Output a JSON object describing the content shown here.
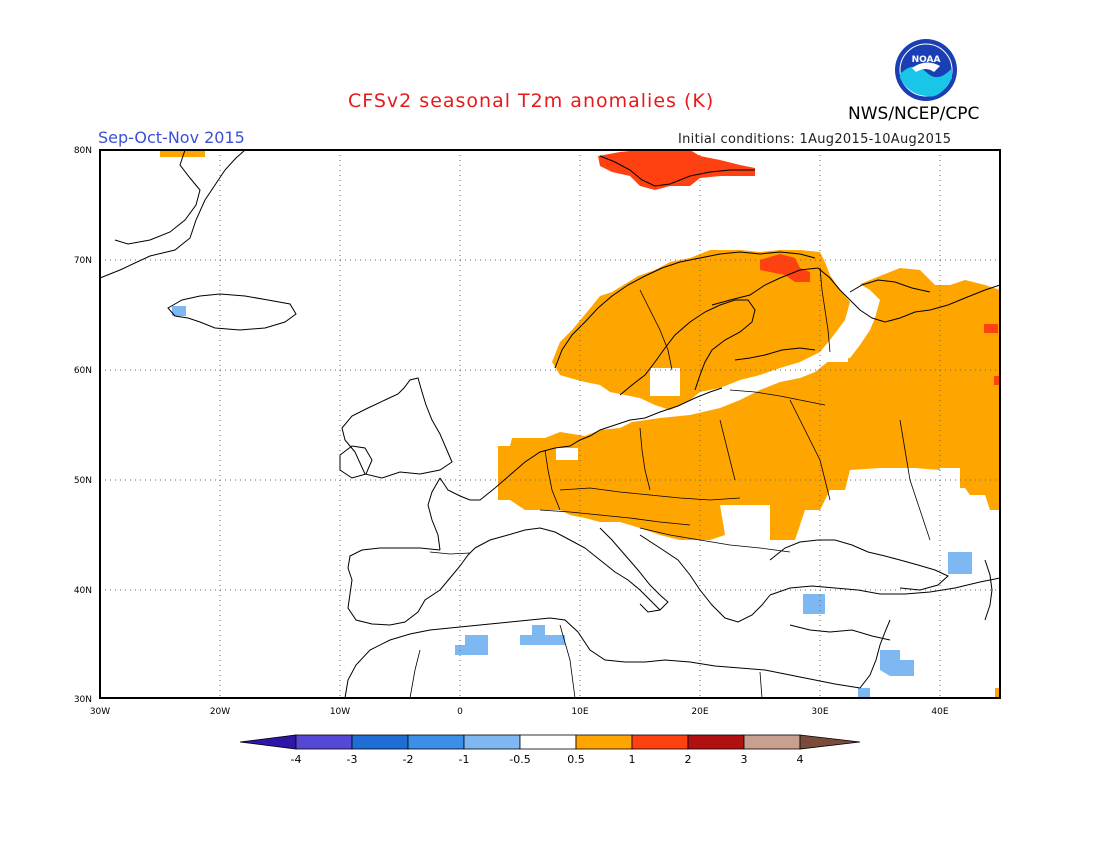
{
  "header": {
    "title": "CFSv2 seasonal T2m anomalies (K)",
    "season": "Sep-Oct-Nov 2015",
    "initial_conditions": "Initial conditions: 1Aug2015-10Aug2015",
    "organization": "NWS/NCEP/CPC",
    "logo_text": "NOAA"
  },
  "map": {
    "lon_range": [
      -30,
      45
    ],
    "lat_range": [
      30,
      80
    ],
    "lon_ticks": [
      "30W",
      "20W",
      "10W",
      "0",
      "10E",
      "20E",
      "30E",
      "40E"
    ],
    "lat_ticks": [
      "30N",
      "40N",
      "50N",
      "60N",
      "70N",
      "80N"
    ],
    "grid": "dotted"
  },
  "colorbar": {
    "colors": [
      "#2e16a8",
      "#5548d4",
      "#1f6ed6",
      "#3c8fe8",
      "#7eb8f2",
      "#ffffff",
      "#ffa500",
      "#ff4010",
      "#b01010",
      "#c8a090",
      "#7a4a3a"
    ],
    "labels": [
      "-4",
      "-3",
      "-2",
      "-1",
      "-0.5",
      "0.5",
      "1",
      "2",
      "3",
      "4"
    ]
  },
  "colors": {
    "warm1": "#ffa500",
    "warm2": "#ff4010",
    "cool1": "#7eb8f2",
    "coast": "#000000"
  }
}
